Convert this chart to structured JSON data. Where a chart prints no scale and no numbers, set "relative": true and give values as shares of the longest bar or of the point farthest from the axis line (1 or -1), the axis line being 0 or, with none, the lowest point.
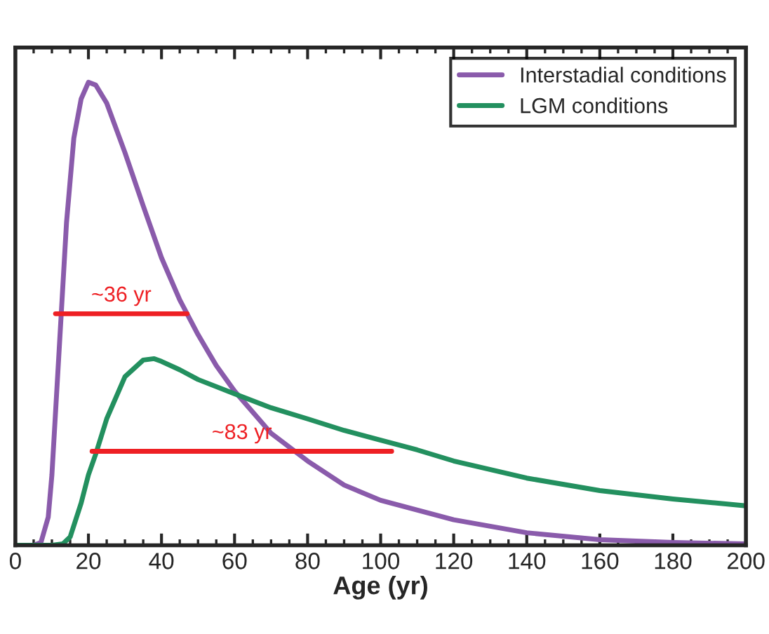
{
  "chart_data": {
    "type": "line",
    "relative": true,
    "xlabel": "Age (yr)",
    "xlim": [
      0,
      200
    ],
    "xticks": [
      0,
      20,
      40,
      60,
      80,
      100,
      120,
      140,
      160,
      180,
      200
    ],
    "tick_labels": "x",
    "legend": "top right",
    "grid": false,
    "marker": "none",
    "line_style": "solid",
    "series": [
      {
        "name": "Interstadial conditions",
        "color": "#8a5bab",
        "x": [
          0,
          5,
          7,
          9,
          10,
          12,
          14,
          16,
          18,
          20,
          22,
          25,
          30,
          35,
          40,
          45,
          50,
          55,
          60,
          70,
          80,
          90,
          100,
          120,
          140,
          160,
          180,
          200
        ],
        "values": [
          0,
          0,
          0.006,
          0.061,
          0.152,
          0.424,
          0.697,
          0.879,
          0.964,
          1,
          0.994,
          0.955,
          0.848,
          0.733,
          0.621,
          0.53,
          0.455,
          0.388,
          0.333,
          0.242,
          0.182,
          0.13,
          0.097,
          0.055,
          0.027,
          0.012,
          0.006,
          0.003
        ]
      },
      {
        "name": "LGM conditions",
        "color": "#23905f",
        "x": [
          0,
          10,
          13,
          15,
          18,
          20,
          22,
          25,
          30,
          35,
          38,
          40,
          45,
          50,
          60,
          70,
          80,
          90,
          100,
          110,
          120,
          140,
          160,
          180,
          200
        ],
        "values": [
          0,
          0,
          0.003,
          0.018,
          0.091,
          0.152,
          0.197,
          0.273,
          0.364,
          0.4,
          0.403,
          0.397,
          0.379,
          0.358,
          0.327,
          0.297,
          0.273,
          0.248,
          0.227,
          0.206,
          0.182,
          0.145,
          0.118,
          0.1,
          0.085
        ]
      },
      {
        "color": "#ee2024",
        "x": [
          11,
          47
        ],
        "values": [
          0.5,
          0.5
        ]
      },
      {
        "color": "#ee2024",
        "x": [
          21,
          103
        ],
        "values": [
          0.203,
          0.203
        ]
      }
    ],
    "annotations": [
      {
        "text": "~36 yr",
        "x": 29,
        "y": 0.5
      },
      {
        "text": "~83 yr",
        "x": 62,
        "y": 0.203
      }
    ]
  }
}
